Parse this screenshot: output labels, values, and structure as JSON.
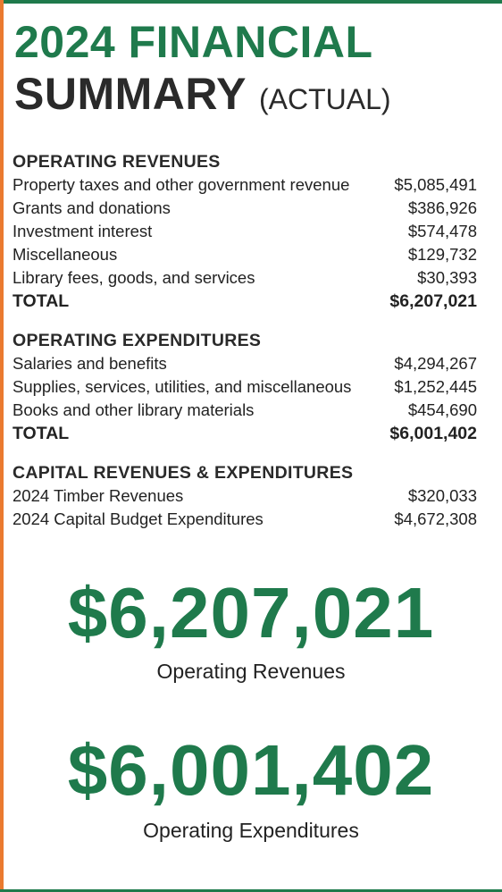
{
  "title": {
    "line1": "2024 FINANCIAL",
    "line2": "SUMMARY",
    "line2_sub": "(ACTUAL)"
  },
  "operating_revenues": {
    "heading": "OPERATING REVENUES",
    "items": [
      {
        "label": "Property taxes and other government revenue",
        "value": "$5,085,491"
      },
      {
        "label": "Grants and donations",
        "value": "$386,926"
      },
      {
        "label": "Investment interest",
        "value": "$574,478"
      },
      {
        "label": "Miscellaneous",
        "value": "$129,732"
      },
      {
        "label": "Library fees, goods, and services",
        "value": "$30,393"
      }
    ],
    "total_label": "TOTAL",
    "total_value": "$6,207,021"
  },
  "operating_expenditures": {
    "heading": "OPERATING EXPENDITURES",
    "items": [
      {
        "label": "Salaries and benefits",
        "value": "$4,294,267"
      },
      {
        "label": "Supplies, services, utilities, and miscellaneous",
        "value": "$1,252,445"
      },
      {
        "label": "Books and other library materials",
        "value": "$454,690"
      }
    ],
    "total_label": "TOTAL",
    "total_value": "$6,001,402"
  },
  "capital": {
    "heading": "CAPITAL REVENUES & EXPENDITURES",
    "items": [
      {
        "label": "2024 Timber Revenues",
        "value": "$320,033"
      },
      {
        "label": "2024 Capital Budget Expenditures",
        "value": "$4,672,308"
      }
    ]
  },
  "highlights": [
    {
      "amount": "$6,207,021",
      "label": "Operating Revenues"
    },
    {
      "amount": "$6,001,402",
      "label": "Operating Expenditures"
    }
  ],
  "colors": {
    "green": "#1f7a4c",
    "orange": "#ea7a2f",
    "dark": "#2a2a2a"
  }
}
